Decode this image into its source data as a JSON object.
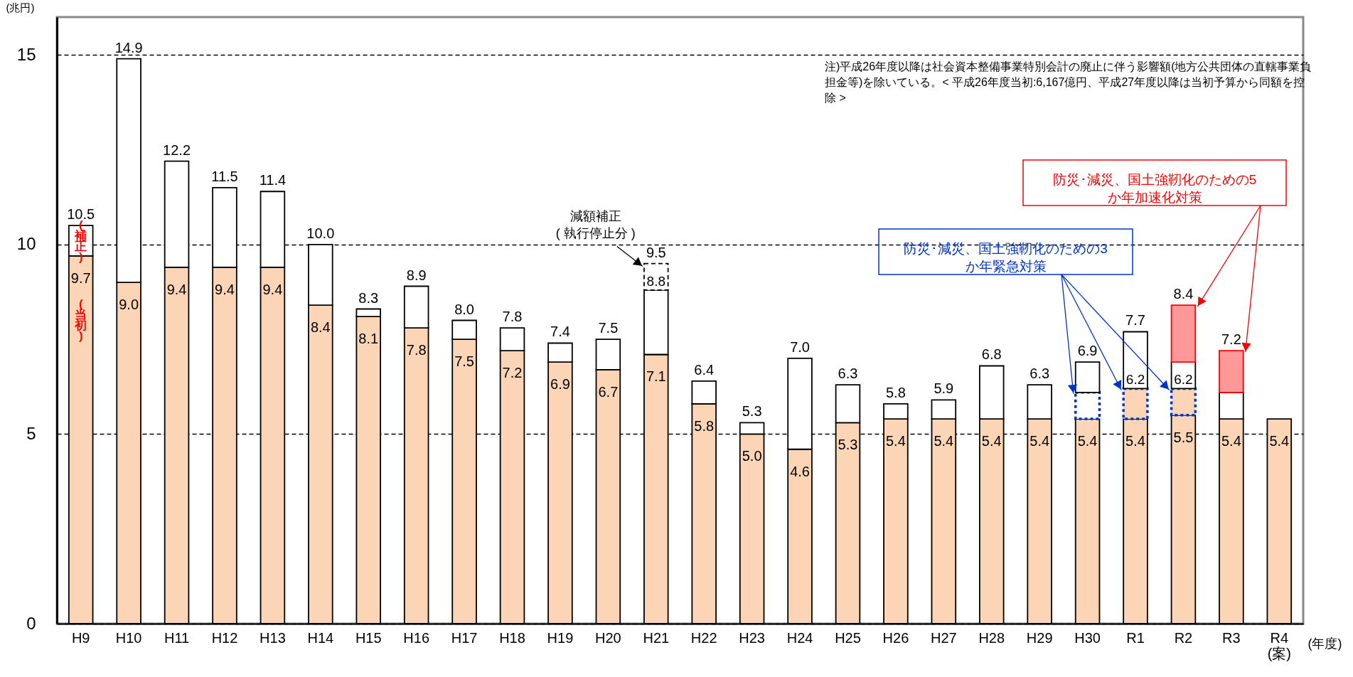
{
  "chart_data": {
    "type": "bar",
    "stacked": true,
    "categories": [
      "H9",
      "H10",
      "H11",
      "H12",
      "H13",
      "H14",
      "H15",
      "H16",
      "H17",
      "H18",
      "H19",
      "H20",
      "H21",
      "H22",
      "H23",
      "H24",
      "H25",
      "H26",
      "H27",
      "H28",
      "H29",
      "H30",
      "R1",
      "R2",
      "R3",
      "R4\n(案)"
    ],
    "xlabel": "(年度)",
    "ylabel": "(兆円)",
    "ylim": [
      0,
      16
    ],
    "yticks": [
      0,
      5,
      10,
      15
    ],
    "grid": "y",
    "series": [
      {
        "name": "(当初)",
        "color": "#fbd5b5",
        "values": [
          9.7,
          9.0,
          9.4,
          9.4,
          9.4,
          8.4,
          8.1,
          7.8,
          7.5,
          7.2,
          6.9,
          6.7,
          7.1,
          5.8,
          5.0,
          4.6,
          5.3,
          5.4,
          5.4,
          5.4,
          5.4,
          5.4,
          5.4,
          5.5,
          5.4,
          5.4
        ],
        "value_labels": [
          "9.7",
          "9.0",
          "9.4",
          "9.4",
          "9.4",
          "8.4",
          "8.1",
          "7.8",
          "7.5",
          "7.2",
          "6.9",
          "6.7",
          "7.1",
          "5.8",
          "5.0",
          "4.6",
          "5.3",
          "5.4",
          "5.4",
          "5.4",
          "5.4",
          "5.4",
          "5.4",
          "5.5",
          "5.4",
          "5.4"
        ]
      },
      {
        "name": "防災･減災、国土強靭化のための3か年緊急対策",
        "colors": [
          null,
          null,
          null,
          null,
          null,
          null,
          null,
          null,
          null,
          null,
          null,
          null,
          null,
          null,
          null,
          null,
          null,
          null,
          null,
          null,
          null,
          "#ffffff",
          "#fbd5b5",
          "#fbd5b5",
          null,
          null
        ],
        "line_style": "dotted",
        "values": [
          null,
          null,
          null,
          null,
          null,
          null,
          null,
          null,
          null,
          null,
          null,
          null,
          null,
          null,
          null,
          null,
          null,
          null,
          null,
          null,
          null,
          0.7,
          0.8,
          0.7,
          null,
          null
        ]
      },
      {
        "name": "(補正)",
        "color": "#ffffff",
        "values": [
          0.8,
          5.9,
          2.8,
          2.1,
          2.0,
          1.6,
          0.2,
          1.1,
          0.5,
          0.6,
          0.5,
          0.8,
          1.7,
          0.6,
          0.3,
          2.4,
          1.0,
          0.4,
          0.5,
          1.4,
          0.9,
          0.8,
          1.5,
          0.7,
          0.7,
          null
        ]
      },
      {
        "color": "#ffffff",
        "line_style": "dashed",
        "values": [
          null,
          null,
          null,
          null,
          null,
          null,
          null,
          null,
          null,
          null,
          null,
          null,
          0.7,
          null,
          null,
          null,
          null,
          null,
          null,
          null,
          null,
          null,
          null,
          null,
          null,
          null
        ]
      },
      {
        "name": "防災･減災、国土強靭化のための5か年加速化対策",
        "color": "#ff9999",
        "values": [
          null,
          null,
          null,
          null,
          null,
          null,
          null,
          null,
          null,
          null,
          null,
          null,
          null,
          null,
          null,
          null,
          null,
          null,
          null,
          null,
          null,
          null,
          null,
          1.5,
          1.1,
          null
        ]
      }
    ],
    "totals": [
      "10.5",
      "14.9",
      "12.2",
      "11.5",
      "11.4",
      "10.0",
      "8.3",
      "8.9",
      "8.0",
      "7.8",
      "7.4",
      "7.5",
      "9.5",
      "6.4",
      "5.3",
      "7.0",
      "6.3",
      "5.8",
      "5.9",
      "6.8",
      "6.3",
      "6.9",
      "7.7",
      "8.4",
      "7.2",
      null
    ],
    "annotations": [
      "注)平成26年度以降は社会資本整備事業特別会計の廃止に伴う影響額(地方公共団体の直轄事業負担金等)を除いている。< 平成26年度当初:6,167億円、平成27年度以降は当初予算から同額を控除 >",
      {
        "text": "減額補正\n( 執行停止分 )",
        "x": "H21",
        "y": 9.5
      },
      {
        "text": "8.8",
        "x": "H21",
        "y": 8.8
      },
      {
        "text": "6.2",
        "x": "R1",
        "y": 6.2
      },
      {
        "text": "6.2",
        "x": "R2",
        "y": 6.2
      }
    ]
  }
}
